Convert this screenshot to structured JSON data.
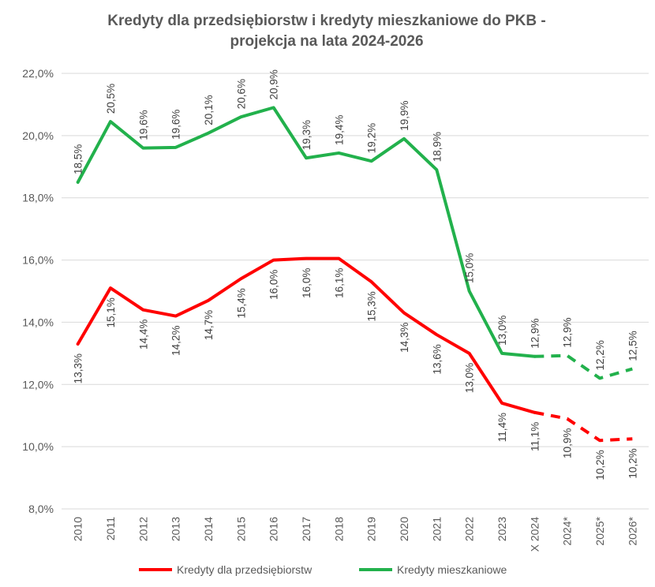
{
  "chart_data": {
    "type": "line",
    "title_line1": "Kredyty dla przedsiębiorstw i kredyty mieszkaniowe do PKB -",
    "title_line2": "projekcja na lata 2024-2026",
    "categories": [
      "2010",
      "2011",
      "2012",
      "2013",
      "2014",
      "2015",
      "2016",
      "2017",
      "2018",
      "2019",
      "2020",
      "2021",
      "2022",
      "2023",
      "X 2024",
      "2024*",
      "2025*",
      "2026*"
    ],
    "ylim": [
      8,
      22
    ],
    "y_ticks": [
      "8,0%",
      "10,0%",
      "12,0%",
      "14,0%",
      "16,0%",
      "18,0%",
      "20,0%",
      "22,0%"
    ],
    "y_tick_values": [
      8,
      10,
      12,
      14,
      16,
      18,
      20,
      22
    ],
    "grid": true,
    "legend_position": "bottom",
    "projection_start_index": 14,
    "series": [
      {
        "name": "Kredyty dla przedsiębiorstw",
        "color": "#ff0000",
        "values": [
          13.3,
          15.1,
          14.4,
          14.2,
          14.7,
          15.4,
          16.0,
          16.05,
          16.05,
          15.3,
          14.3,
          13.6,
          13.0,
          11.4,
          11.1,
          10.9,
          10.2,
          10.25
        ],
        "labels": [
          "13,3%",
          "15,1%",
          "14,4%",
          "14,2%",
          "14,7%",
          "15,4%",
          "16,0%",
          "16,0%",
          "16,1%",
          "15,3%",
          "14,3%",
          "13,6%",
          "13,0%",
          "11,4%",
          "11,1%",
          "10,9%",
          "10,2%",
          "10,2%"
        ]
      },
      {
        "name": "Kredyty mieszkaniowe",
        "color": "#22b14c",
        "values": [
          18.5,
          20.45,
          19.6,
          19.62,
          20.08,
          20.6,
          20.9,
          19.28,
          19.44,
          19.18,
          19.9,
          18.9,
          15.0,
          13.0,
          12.9,
          12.93,
          12.2,
          12.5
        ],
        "labels": [
          "18,5%",
          "20,5%",
          "19,6%",
          "19,6%",
          "20,1%",
          "20,6%",
          "20,9%",
          "19,3%",
          "19,4%",
          "19,2%",
          "19,9%",
          "18,9%",
          "15,0%",
          "13,0%",
          "12,9%",
          "12,9%",
          "12,2%",
          "12,5%"
        ]
      }
    ]
  }
}
